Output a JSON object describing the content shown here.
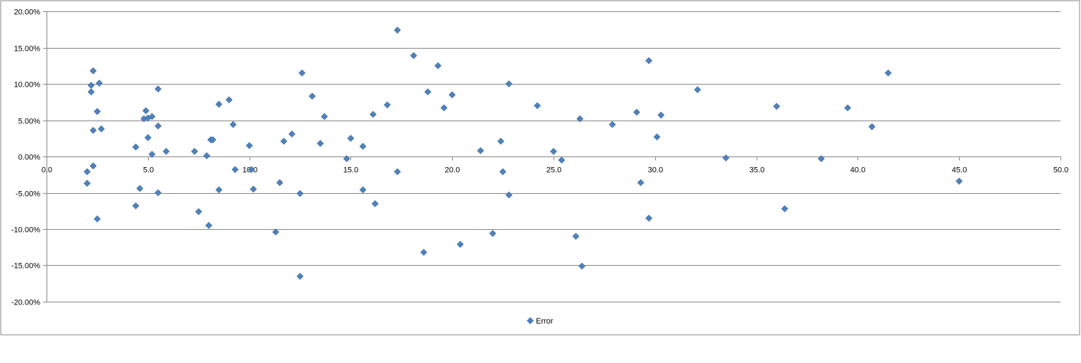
{
  "chart_data": {
    "type": "scatter",
    "title": "",
    "xlabel": "",
    "ylabel": "",
    "xlim": [
      0,
      50
    ],
    "ylim": [
      -0.2,
      0.2
    ],
    "x_ticks": [
      0,
      5,
      10,
      15,
      20,
      25,
      30,
      35,
      40,
      45,
      50
    ],
    "x_tick_labels": [
      "0.0",
      "5.0",
      "10.0",
      "15.0",
      "20.0",
      "25.0",
      "30.0",
      "35.0",
      "40.0",
      "45.0",
      "50.0"
    ],
    "y_ticks": [
      0.2,
      0.15,
      0.1,
      0.05,
      0,
      -0.05,
      -0.1,
      -0.15,
      -0.2
    ],
    "y_tick_labels": [
      "20.00%",
      "15.00%",
      "10.00%",
      "5.00%",
      "0.00%",
      "-5.00%",
      "-10.00%",
      "-15.00%",
      "-20.00%"
    ],
    "grid": "horizontal",
    "legend_position": "bottom",
    "colors": {
      "marker": "#4F81BD",
      "marker_edge": "#3A6A9E",
      "gridline": "#868686",
      "axis": "#868686",
      "frame": "#868686"
    },
    "series": [
      {
        "name": "Error",
        "points": [
          [
            2.0,
            -0.021
          ],
          [
            2.0,
            -0.037
          ],
          [
            2.2,
            0.098
          ],
          [
            2.2,
            0.089
          ],
          [
            2.3,
            0.118
          ],
          [
            2.3,
            0.036
          ],
          [
            2.3,
            -0.013
          ],
          [
            2.5,
            -0.086
          ],
          [
            2.5,
            0.062
          ],
          [
            2.6,
            0.101
          ],
          [
            2.7,
            0.038
          ],
          [
            4.4,
            0.013
          ],
          [
            4.4,
            -0.068
          ],
          [
            4.6,
            -0.044
          ],
          [
            4.8,
            0.052
          ],
          [
            4.9,
            0.063
          ],
          [
            5.0,
            0.053
          ],
          [
            5.0,
            0.026
          ],
          [
            5.2,
            0.003
          ],
          [
            5.2,
            0.055
          ],
          [
            5.5,
            0.093
          ],
          [
            5.5,
            0.042
          ],
          [
            5.5,
            -0.05
          ],
          [
            5.9,
            0.007
          ],
          [
            7.3,
            0.007
          ],
          [
            7.5,
            -0.076
          ],
          [
            7.9,
            0.001
          ],
          [
            8.1,
            0.023
          ],
          [
            8.2,
            0.023
          ],
          [
            8.0,
            -0.095
          ],
          [
            8.5,
            0.072
          ],
          [
            8.5,
            -0.046
          ],
          [
            9.0,
            0.078
          ],
          [
            9.2,
            0.044
          ],
          [
            9.3,
            -0.018
          ],
          [
            10.0,
            0.015
          ],
          [
            10.1,
            -0.018
          ],
          [
            10.2,
            -0.045
          ],
          [
            11.3,
            -0.104
          ],
          [
            11.5,
            -0.036
          ],
          [
            11.7,
            0.021
          ],
          [
            12.1,
            0.031
          ],
          [
            12.5,
            -0.165
          ],
          [
            12.5,
            -0.051
          ],
          [
            12.6,
            0.115
          ],
          [
            13.1,
            0.083
          ],
          [
            13.5,
            0.018
          ],
          [
            13.7,
            0.055
          ],
          [
            14.8,
            -0.003
          ],
          [
            15.0,
            0.025
          ],
          [
            15.6,
            0.014
          ],
          [
            15.6,
            -0.046
          ],
          [
            16.1,
            0.058
          ],
          [
            16.2,
            -0.065
          ],
          [
            16.8,
            0.071
          ],
          [
            17.3,
            0.174
          ],
          [
            17.3,
            -0.021
          ],
          [
            18.1,
            0.139
          ],
          [
            18.6,
            -0.132
          ],
          [
            18.8,
            0.089
          ],
          [
            19.3,
            0.125
          ],
          [
            19.6,
            0.067
          ],
          [
            20.0,
            0.085
          ],
          [
            20.4,
            -0.121
          ],
          [
            21.4,
            0.008
          ],
          [
            22.0,
            -0.106
          ],
          [
            22.4,
            0.021
          ],
          [
            22.5,
            -0.021
          ],
          [
            22.8,
            0.1
          ],
          [
            22.8,
            -0.053
          ],
          [
            24.2,
            0.07
          ],
          [
            25.0,
            0.007
          ],
          [
            25.4,
            -0.005
          ],
          [
            26.1,
            -0.11
          ],
          [
            26.3,
            0.052
          ],
          [
            26.4,
            -0.151
          ],
          [
            27.9,
            0.044
          ],
          [
            29.1,
            0.061
          ],
          [
            29.3,
            -0.036
          ],
          [
            29.7,
            0.132
          ],
          [
            29.7,
            -0.085
          ],
          [
            30.1,
            0.027
          ],
          [
            30.3,
            0.057
          ],
          [
            32.1,
            0.092
          ],
          [
            33.5,
            -0.002
          ],
          [
            36.0,
            0.069
          ],
          [
            36.4,
            -0.072
          ],
          [
            38.2,
            -0.003
          ],
          [
            39.5,
            0.067
          ],
          [
            40.7,
            0.041
          ],
          [
            41.5,
            0.115
          ],
          [
            45.0,
            -0.034
          ]
        ]
      }
    ]
  }
}
